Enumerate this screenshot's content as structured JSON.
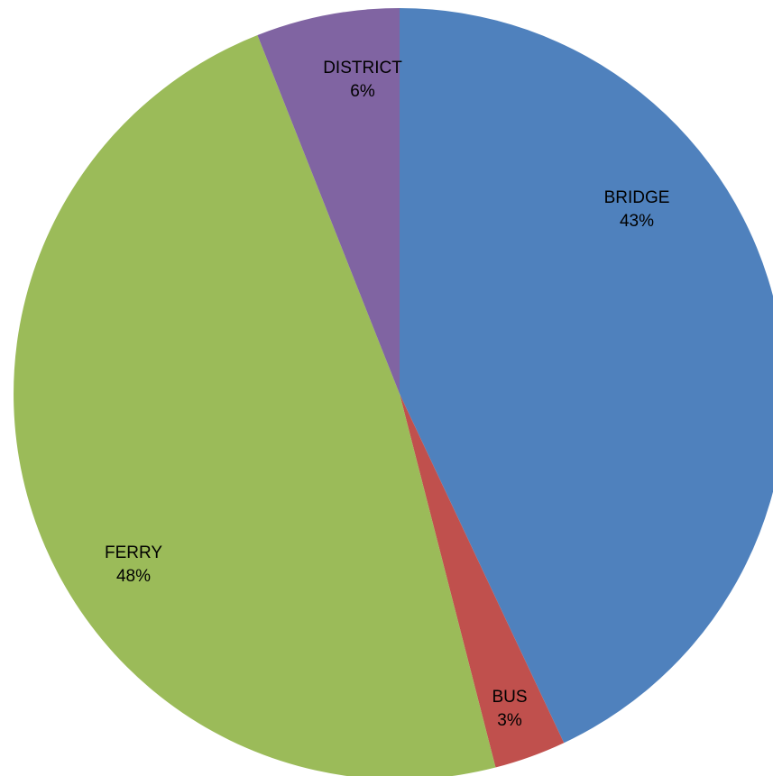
{
  "chart_data": {
    "type": "pie",
    "title": "",
    "slices": [
      {
        "label": "BRIDGE",
        "value": 43,
        "percent_label": "43%",
        "color": "#4F81BD"
      },
      {
        "label": "BUS",
        "value": 3,
        "percent_label": "3%",
        "color": "#C0504D"
      },
      {
        "label": "FERRY",
        "value": 48,
        "percent_label": "48%",
        "color": "#9BBB59"
      },
      {
        "label": "DISTRICT",
        "value": 6,
        "percent_label": "6%",
        "color": "#8064A2"
      }
    ],
    "start_angle": "12 o'clock",
    "direction": "clockwise",
    "legend": "none",
    "data_labels": "category and percentage inside slices"
  }
}
